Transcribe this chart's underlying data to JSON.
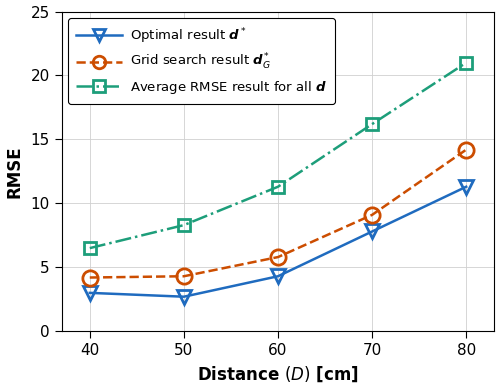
{
  "x": [
    40,
    50,
    60,
    70,
    80
  ],
  "optimal": [
    3.0,
    2.7,
    4.3,
    7.8,
    11.3
  ],
  "grid_search": [
    4.2,
    4.3,
    5.8,
    9.1,
    14.2
  ],
  "average": [
    6.5,
    8.3,
    11.3,
    16.2,
    21.0
  ],
  "optimal_color": "#1f6bbf",
  "grid_search_color": "#cc4d00",
  "average_color": "#1d9e7a",
  "xlabel": "Distance $(D)$ [cm]",
  "ylabel": "RMSE",
  "xlim": [
    37,
    83
  ],
  "ylim": [
    0,
    25
  ],
  "xticks": [
    40,
    50,
    60,
    70,
    80
  ],
  "yticks": [
    0,
    5,
    10,
    15,
    20,
    25
  ],
  "legend_optimal": "Optimal result $\\boldsymbol{d}^*$",
  "legend_grid": "Grid search result $\\boldsymbol{d}_G^*$",
  "legend_average": "Average RMSE result for all $\\boldsymbol{d}$",
  "figwidth": 5.0,
  "figheight": 3.9
}
